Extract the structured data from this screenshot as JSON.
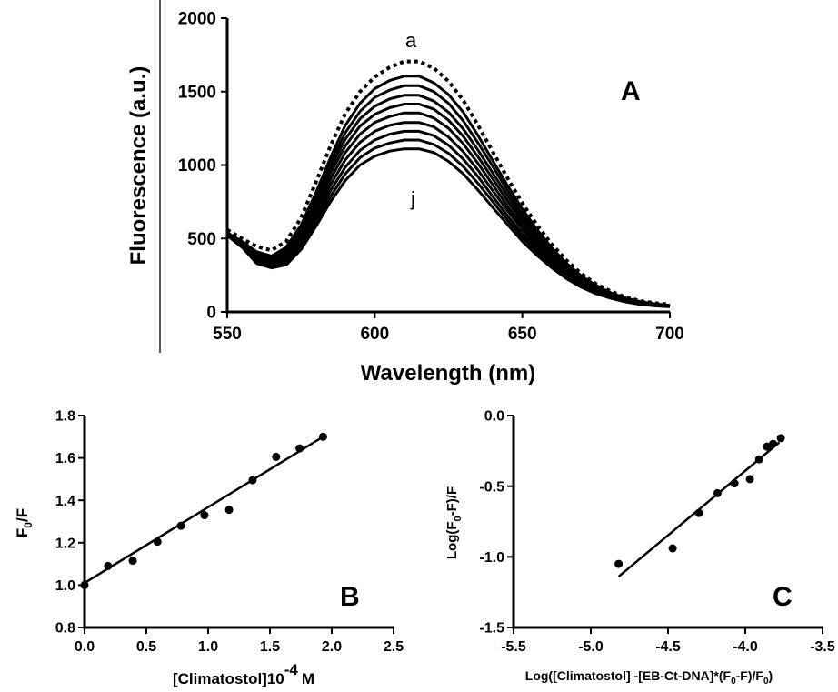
{
  "chart_data": [
    {
      "panel": "A",
      "type": "line",
      "xlabel": "Wavelength (nm)",
      "ylabel": "Fluorescence (a.u.)",
      "xlim": [
        550,
        700
      ],
      "ylim": [
        0,
        2000
      ],
      "xticks": [
        "550",
        "600",
        "650",
        "700"
      ],
      "yticks": [
        "0",
        "500",
        "1000",
        "1500",
        "2000"
      ],
      "panel_label": "A",
      "curve_labels": [
        "a",
        "j"
      ],
      "x": [
        550,
        555,
        560,
        565,
        570,
        575,
        580,
        585,
        590,
        595,
        600,
        605,
        610,
        615,
        620,
        625,
        630,
        635,
        640,
        645,
        650,
        655,
        660,
        665,
        670,
        675,
        680,
        685,
        690,
        695,
        700
      ],
      "series": [
        {
          "name": "a",
          "style": "dotted",
          "values": [
            560,
            500,
            445,
            420,
            480,
            640,
            880,
            1130,
            1350,
            1500,
            1600,
            1665,
            1705,
            1705,
            1660,
            1570,
            1440,
            1270,
            1090,
            910,
            740,
            590,
            460,
            350,
            260,
            190,
            140,
            100,
            75,
            60,
            50
          ]
        },
        {
          "values": [
            540,
            480,
            410,
            380,
            440,
            590,
            810,
            1050,
            1270,
            1420,
            1520,
            1575,
            1605,
            1605,
            1560,
            1480,
            1360,
            1200,
            1030,
            860,
            700,
            560,
            435,
            330,
            245,
            180,
            130,
            95,
            70,
            55,
            45
          ]
        },
        {
          "values": [
            540,
            475,
            400,
            370,
            425,
            570,
            785,
            1015,
            1220,
            1365,
            1460,
            1510,
            1540,
            1540,
            1500,
            1420,
            1300,
            1150,
            990,
            825,
            670,
            535,
            415,
            315,
            235,
            170,
            125,
            90,
            68,
            52,
            43
          ]
        },
        {
          "values": [
            535,
            470,
            390,
            360,
            410,
            550,
            755,
            980,
            1175,
            1315,
            1400,
            1450,
            1475,
            1475,
            1435,
            1360,
            1245,
            1100,
            945,
            790,
            640,
            510,
            395,
            300,
            225,
            165,
            120,
            87,
            65,
            50,
            42
          ]
        },
        {
          "values": [
            535,
            465,
            380,
            350,
            395,
            530,
            725,
            945,
            1130,
            1265,
            1345,
            1390,
            1415,
            1415,
            1380,
            1305,
            1195,
            1055,
            905,
            755,
            615,
            490,
            380,
            290,
            215,
            158,
            115,
            84,
            62,
            48,
            40
          ]
        },
        {
          "values": [
            530,
            460,
            370,
            340,
            380,
            505,
            695,
            905,
            1085,
            1210,
            1290,
            1330,
            1355,
            1355,
            1320,
            1250,
            1145,
            1010,
            865,
            720,
            585,
            465,
            360,
            275,
            205,
            150,
            110,
            80,
            60,
            46,
            39
          ]
        },
        {
          "values": [
            530,
            455,
            360,
            330,
            365,
            485,
            665,
            865,
            1035,
            1155,
            1230,
            1270,
            1290,
            1290,
            1260,
            1190,
            1090,
            965,
            825,
            690,
            560,
            445,
            345,
            262,
            195,
            143,
            105,
            77,
            57,
            45,
            38
          ]
        },
        {
          "values": [
            525,
            450,
            350,
            320,
            350,
            465,
            635,
            825,
            985,
            1100,
            1170,
            1210,
            1230,
            1230,
            1200,
            1135,
            1040,
            920,
            785,
            655,
            530,
            425,
            330,
            250,
            186,
            136,
            100,
            74,
            55,
            43,
            37
          ]
        },
        {
          "values": [
            525,
            445,
            340,
            310,
            335,
            445,
            605,
            785,
            940,
            1050,
            1115,
            1150,
            1170,
            1170,
            1140,
            1080,
            990,
            875,
            750,
            625,
            505,
            405,
            315,
            238,
            177,
            130,
            96,
            71,
            53,
            42,
            36
          ]
        },
        {
          "name": "j",
          "values": [
            520,
            440,
            330,
            300,
            320,
            425,
            580,
            750,
            895,
            1000,
            1060,
            1095,
            1110,
            1110,
            1085,
            1025,
            940,
            830,
            710,
            595,
            480,
            385,
            300,
            226,
            168,
            124,
            92,
            68,
            51,
            41,
            35
          ]
        }
      ]
    },
    {
      "panel": "B",
      "type": "scatter",
      "xlabel": "[Climatostol]10",
      "xlabel_super": "-4",
      "xlabel_unit": "M",
      "ylabel": "F",
      "ylabel_sub": "0",
      "ylabel_tail": "/F",
      "xlim": [
        0,
        2.5
      ],
      "ylim": [
        0.8,
        1.8
      ],
      "xticks": [
        "0.0",
        "0.5",
        "1.0",
        "1.5",
        "2.0",
        "2.5"
      ],
      "yticks": [
        "0.8",
        "1.0",
        "1.2",
        "1.4",
        "1.6",
        "1.8"
      ],
      "panel_label": "B",
      "points": {
        "x": [
          0.0,
          0.19,
          0.39,
          0.59,
          0.78,
          0.97,
          1.17,
          1.36,
          1.55,
          1.74,
          1.93
        ],
        "y": [
          1.0,
          1.09,
          1.115,
          1.205,
          1.28,
          1.33,
          1.355,
          1.495,
          1.605,
          1.645,
          1.7
        ]
      },
      "fit_line": {
        "x": [
          0.0,
          1.93
        ],
        "y": [
          1.01,
          1.7
        ]
      }
    },
    {
      "panel": "C",
      "type": "scatter",
      "xlabel": "Log([Climatostol] -[EB-Ct-DNA]*(F",
      "xlabel_sub1": "0",
      "xlabel_mid": "-F)/F",
      "xlabel_sub2": "0",
      "xlabel_end": ")",
      "ylabel": "Log(F",
      "ylabel_sub": "0",
      "ylabel_tail": "-F)/F",
      "xlim": [
        -5.5,
        -3.5
      ],
      "ylim": [
        -1.5,
        0.0
      ],
      "xticks": [
        "-5.5",
        "-5.0",
        "-4.5",
        "-4.0",
        "-3.5"
      ],
      "yticks": [
        "-1.5",
        "-1.0",
        "-0.5",
        "0.0"
      ],
      "panel_label": "C",
      "points": {
        "x": [
          -4.82,
          -4.47,
          -4.3,
          -4.18,
          -4.07,
          -3.97,
          -3.91,
          -3.86,
          -3.82,
          -3.77
        ],
        "y": [
          -1.05,
          -0.94,
          -0.69,
          -0.55,
          -0.48,
          -0.45,
          -0.31,
          -0.22,
          -0.2,
          -0.16
        ]
      },
      "fit_line": {
        "x": [
          -4.82,
          -3.78
        ],
        "y": [
          -1.14,
          -0.19
        ]
      }
    }
  ]
}
